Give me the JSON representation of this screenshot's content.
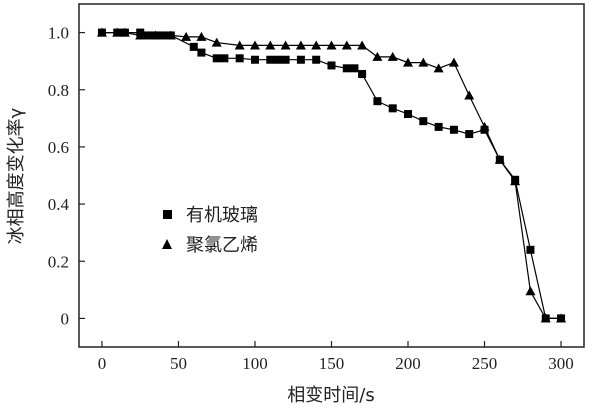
{
  "chart_data": {
    "type": "line",
    "xlabel": "相变时间/s",
    "ylabel": "冰相高度变化率γ",
    "xlim": [
      -15,
      315
    ],
    "ylim": [
      -0.1,
      1.1
    ],
    "xticks": [
      "0",
      "50",
      "100",
      "150",
      "200",
      "250",
      "300"
    ],
    "yticks": [
      "0",
      "0.2",
      "0.4",
      "0.6",
      "0.8",
      "1.0"
    ],
    "legend_position": "center-left",
    "series": [
      {
        "name": "有机玻璃",
        "marker": "square",
        "color": "#000000",
        "x": [
          0,
          10,
          15,
          25,
          30,
          35,
          40,
          45,
          60,
          65,
          75,
          80,
          90,
          100,
          110,
          115,
          120,
          130,
          140,
          150,
          160,
          165,
          170,
          180,
          190,
          200,
          210,
          220,
          230,
          240,
          250,
          260,
          270,
          280,
          290,
          300
        ],
        "y": [
          1.0,
          1.0,
          1.0,
          1.0,
          0.99,
          0.99,
          0.99,
          0.99,
          0.95,
          0.93,
          0.91,
          0.91,
          0.91,
          0.905,
          0.905,
          0.905,
          0.905,
          0.905,
          0.905,
          0.885,
          0.875,
          0.875,
          0.855,
          0.76,
          0.735,
          0.715,
          0.69,
          0.67,
          0.66,
          0.645,
          0.66,
          0.555,
          0.485,
          0.24,
          0.0,
          0.0
        ]
      },
      {
        "name": "聚氯乙烯",
        "marker": "triangle",
        "color": "#000000",
        "x": [
          0,
          10,
          15,
          25,
          35,
          45,
          55,
          65,
          75,
          90,
          100,
          110,
          120,
          130,
          140,
          150,
          160,
          170,
          180,
          190,
          200,
          210,
          220,
          230,
          240,
          250,
          260,
          270,
          280,
          290,
          300
        ],
        "y": [
          1.0,
          1.0,
          1.0,
          0.99,
          0.99,
          0.99,
          0.985,
          0.985,
          0.965,
          0.955,
          0.955,
          0.955,
          0.955,
          0.955,
          0.955,
          0.955,
          0.955,
          0.955,
          0.915,
          0.915,
          0.895,
          0.895,
          0.875,
          0.895,
          0.78,
          0.67,
          0.555,
          0.48,
          0.095,
          0.0,
          0.0
        ]
      }
    ]
  }
}
